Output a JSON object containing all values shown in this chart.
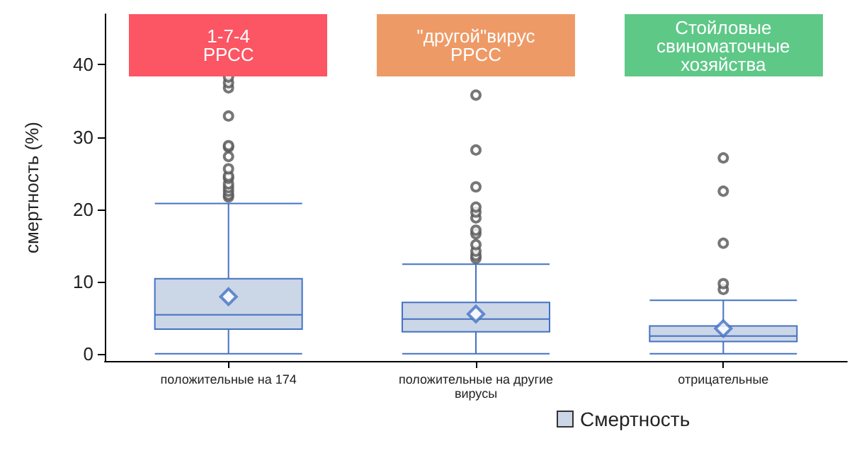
{
  "chart_data": {
    "type": "box",
    "ylabel": "смертность (%)",
    "categories": [
      "положительные на 174",
      "положительные на другие\nвирусы",
      "отрицательные"
    ],
    "ylim": [
      -1,
      47
    ],
    "yticks": [
      0,
      10,
      20,
      30,
      40
    ],
    "grid": false,
    "legend": "bottom",
    "series": [
      {
        "name": "Смертность",
        "color": "#cbd6e6",
        "boxes": [
          {
            "low": 0,
            "q1": 3.4,
            "median": 5.4,
            "q3": 10.4,
            "high": 20.8,
            "mean": 7.9,
            "outliers": [
              21.7,
              22.0,
              22.5,
              23.0,
              23.5,
              24.3,
              24.6,
              25.6,
              27.3,
              28.6,
              28.8,
              32.9,
              36.8,
              37.5,
              38.3
            ]
          },
          {
            "low": 0,
            "q1": 3.05,
            "median": 4.8,
            "q3": 7.1,
            "high": 12.4,
            "mean": 5.5,
            "outliers": [
              13.2,
              13.6,
              14.2,
              15.1,
              16.6,
              17.1,
              18.8,
              19.6,
              20.3,
              23.1,
              28.2,
              35.8
            ]
          },
          {
            "low": 0,
            "q1": 1.7,
            "median": 2.45,
            "q3": 3.85,
            "high": 7.4,
            "mean": 3.5,
            "outliers": [
              8.9,
              9.7,
              15.3,
              22.5,
              27.1
            ]
          }
        ]
      }
    ],
    "annotations": [
      "1-7-4\nРРСС",
      "\"другой\"вирус\nРРСС",
      "Стойловые\nсвиноматочные\nхозяйства"
    ]
  }
}
